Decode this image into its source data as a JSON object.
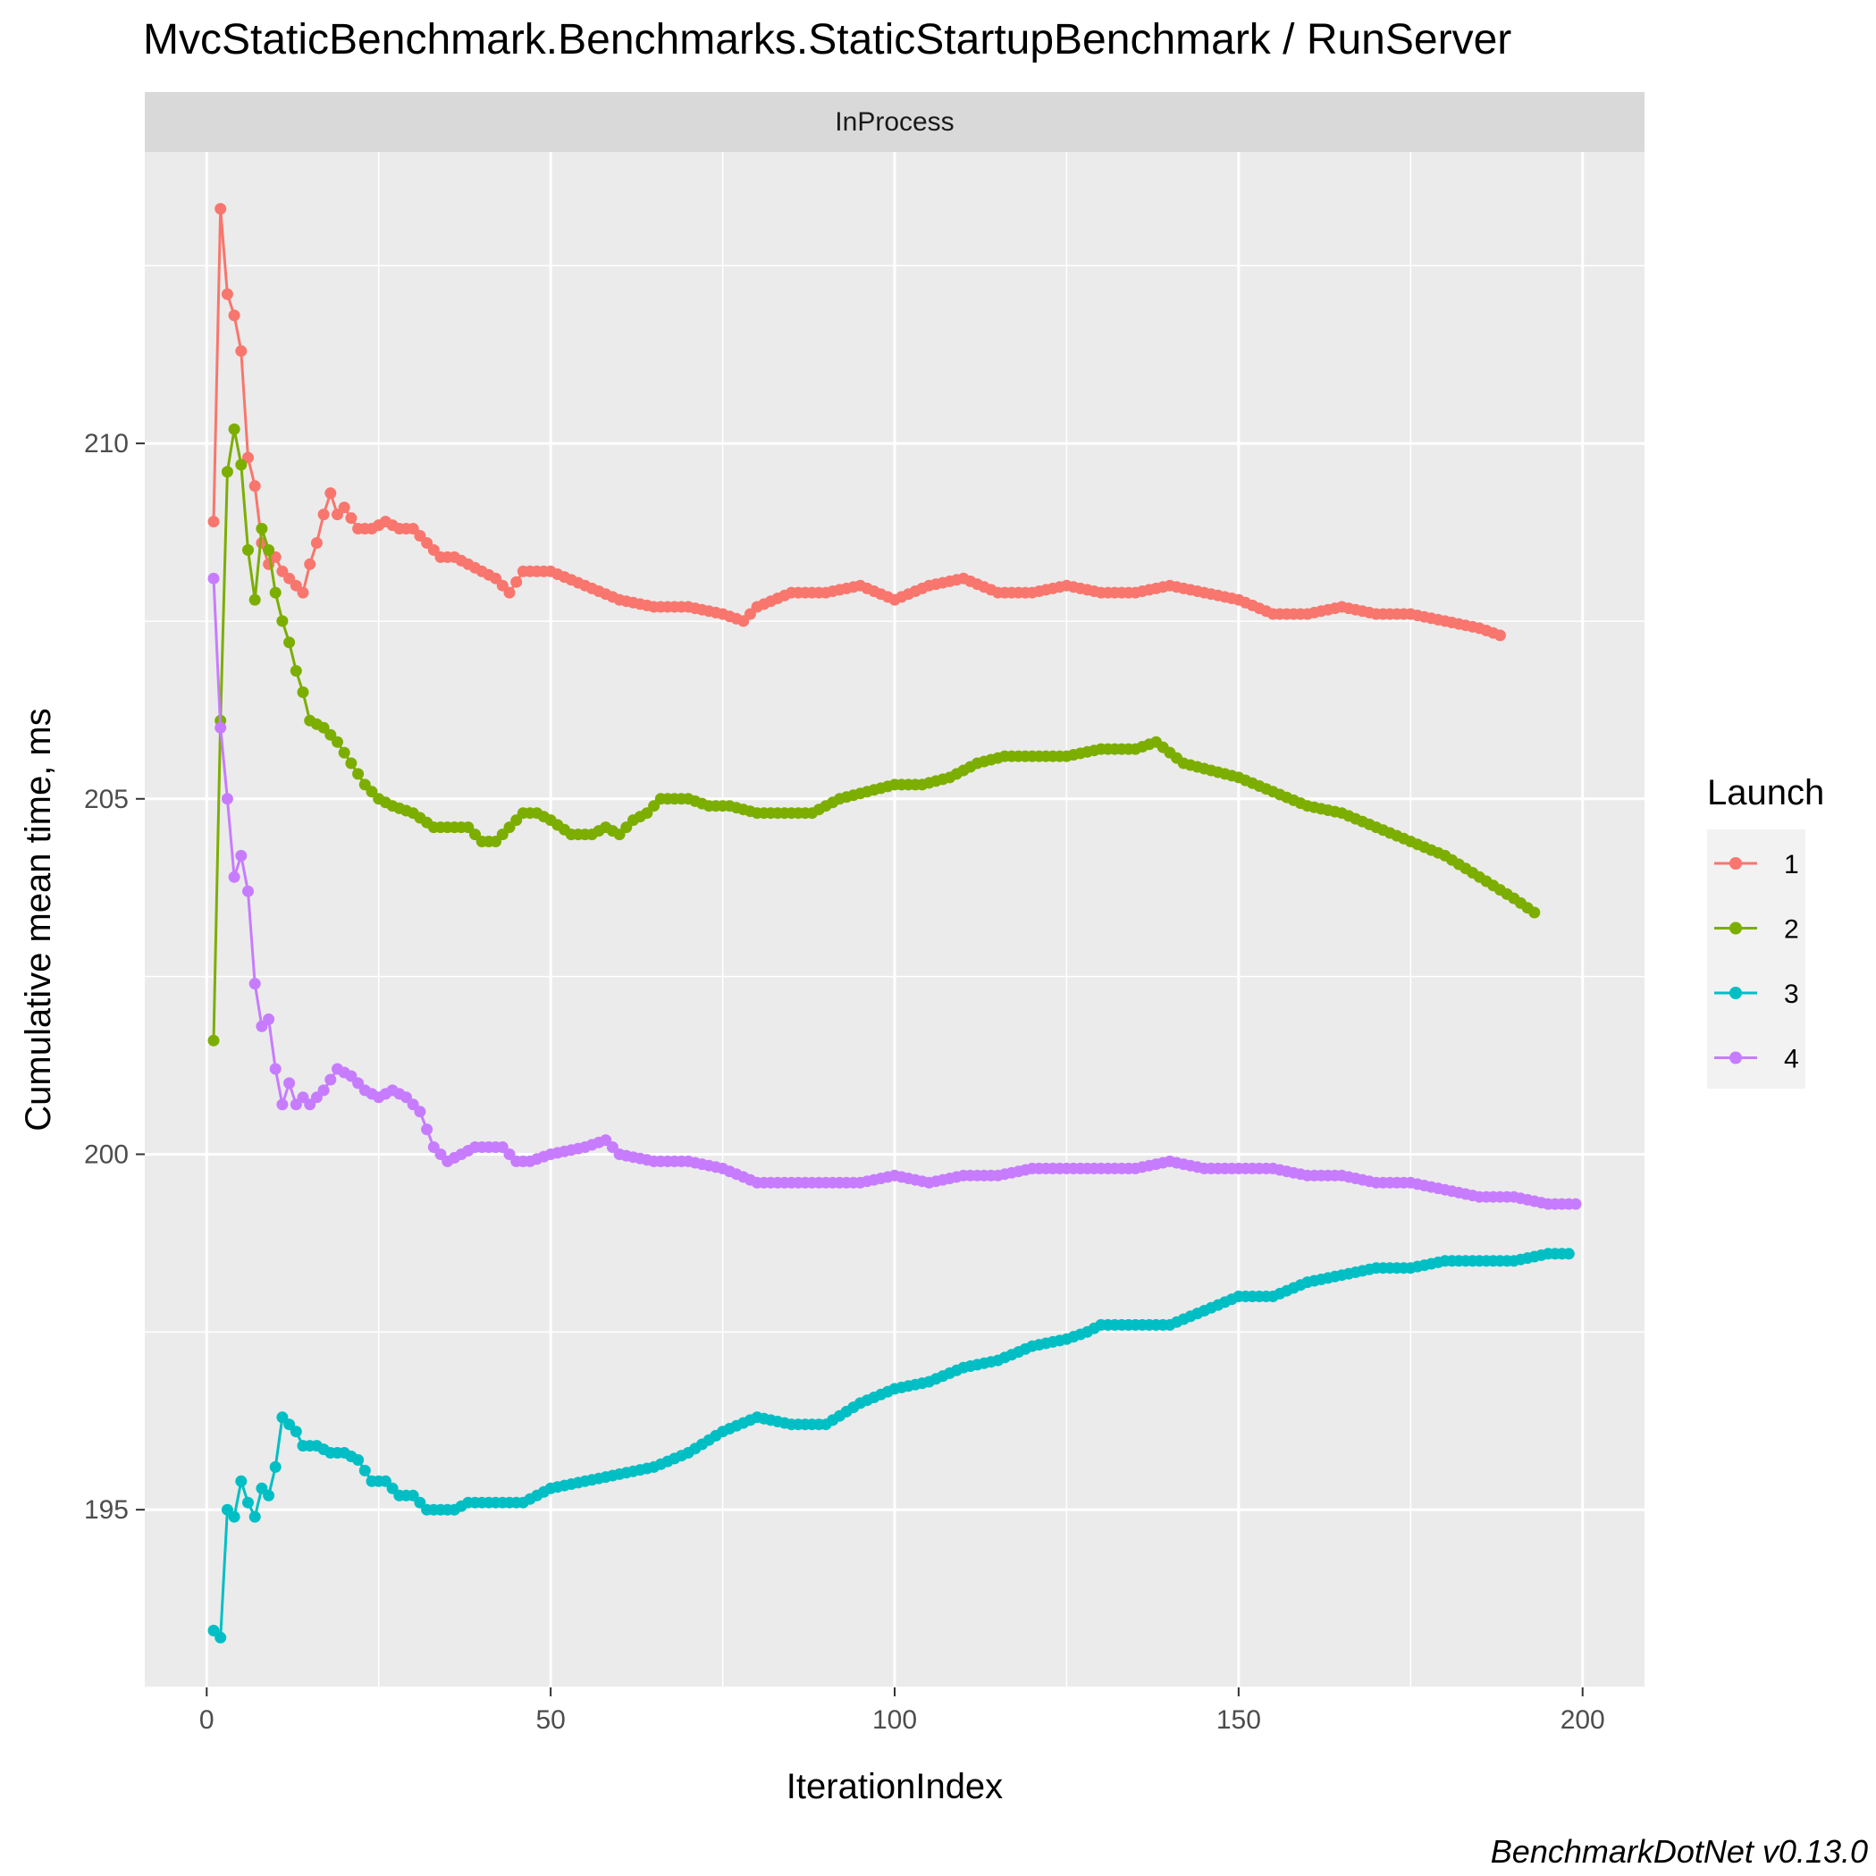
{
  "chart_data": {
    "type": "line",
    "title": "MvcStaticBenchmark.Benchmarks.StaticStartupBenchmark / RunServer",
    "facet_label": "InProcess",
    "xlabel": "IterationIndex",
    "ylabel": "Cumulative mean time, ms",
    "caption": "BenchmarkDotNet v0.13.0",
    "xlim": [
      -9,
      209
    ],
    "ylim": [
      192.5,
      214.1
    ],
    "x_ticks": [
      0,
      50,
      100,
      150,
      200
    ],
    "y_ticks": [
      195,
      200,
      205,
      210
    ],
    "grid": true,
    "markers": true,
    "legend": {
      "title": "Launch",
      "position": "right"
    },
    "series": [
      {
        "name": "1",
        "color": "#F8766D",
        "points": [
          [
            1,
            208.9
          ],
          [
            2,
            213.3
          ],
          [
            3,
            212.1
          ],
          [
            4,
            211.8
          ],
          [
            5,
            211.3
          ],
          [
            6,
            209.8
          ],
          [
            7,
            209.4
          ],
          [
            8,
            208.6
          ],
          [
            9,
            208.3
          ],
          [
            10,
            208.4
          ],
          [
            11,
            208.2
          ],
          [
            12,
            208.1
          ],
          [
            13,
            208.0
          ],
          [
            14,
            207.9
          ],
          [
            15,
            208.3
          ],
          [
            16,
            208.6
          ],
          [
            17,
            209.0
          ],
          [
            18,
            209.3
          ],
          [
            19,
            209.0
          ],
          [
            20,
            209.1
          ],
          [
            22,
            208.8
          ],
          [
            24,
            208.8
          ],
          [
            26,
            208.9
          ],
          [
            28,
            208.8
          ],
          [
            30,
            208.8
          ],
          [
            32,
            208.6
          ],
          [
            34,
            208.4
          ],
          [
            36,
            208.4
          ],
          [
            38,
            208.3
          ],
          [
            40,
            208.2
          ],
          [
            42,
            208.1
          ],
          [
            44,
            207.9
          ],
          [
            46,
            208.2
          ],
          [
            48,
            208.2
          ],
          [
            50,
            208.2
          ],
          [
            55,
            208.0
          ],
          [
            60,
            207.8
          ],
          [
            65,
            207.7
          ],
          [
            70,
            207.7
          ],
          [
            75,
            207.6
          ],
          [
            78,
            207.5
          ],
          [
            80,
            207.7
          ],
          [
            85,
            207.9
          ],
          [
            90,
            207.9
          ],
          [
            95,
            208.0
          ],
          [
            100,
            207.8
          ],
          [
            105,
            208.0
          ],
          [
            110,
            208.1
          ],
          [
            115,
            207.9
          ],
          [
            120,
            207.9
          ],
          [
            125,
            208.0
          ],
          [
            130,
            207.9
          ],
          [
            135,
            207.9
          ],
          [
            140,
            208.0
          ],
          [
            145,
            207.9
          ],
          [
            150,
            207.8
          ],
          [
            155,
            207.6
          ],
          [
            160,
            207.6
          ],
          [
            165,
            207.7
          ],
          [
            170,
            207.6
          ],
          [
            175,
            207.6
          ],
          [
            180,
            207.5
          ],
          [
            185,
            207.4
          ],
          [
            188,
            207.3
          ]
        ]
      },
      {
        "name": "2",
        "color": "#7CAE00",
        "points": [
          [
            1,
            201.6
          ],
          [
            2,
            206.1
          ],
          [
            3,
            209.6
          ],
          [
            4,
            210.2
          ],
          [
            5,
            209.7
          ],
          [
            6,
            208.5
          ],
          [
            7,
            207.8
          ],
          [
            8,
            208.8
          ],
          [
            9,
            208.5
          ],
          [
            10,
            207.9
          ],
          [
            11,
            207.5
          ],
          [
            12,
            207.2
          ],
          [
            13,
            206.8
          ],
          [
            14,
            206.5
          ],
          [
            15,
            206.1
          ],
          [
            17,
            206.0
          ],
          [
            19,
            205.8
          ],
          [
            21,
            205.5
          ],
          [
            23,
            205.2
          ],
          [
            25,
            205.0
          ],
          [
            27,
            204.9
          ],
          [
            30,
            204.8
          ],
          [
            33,
            204.6
          ],
          [
            36,
            204.6
          ],
          [
            38,
            204.6
          ],
          [
            40,
            204.4
          ],
          [
            42,
            204.4
          ],
          [
            44,
            204.6
          ],
          [
            46,
            204.8
          ],
          [
            48,
            204.8
          ],
          [
            50,
            204.7
          ],
          [
            53,
            204.5
          ],
          [
            56,
            204.5
          ],
          [
            58,
            204.6
          ],
          [
            60,
            204.5
          ],
          [
            62,
            204.7
          ],
          [
            64,
            204.8
          ],
          [
            66,
            205.0
          ],
          [
            68,
            205.0
          ],
          [
            70,
            205.0
          ],
          [
            73,
            204.9
          ],
          [
            76,
            204.9
          ],
          [
            80,
            204.8
          ],
          [
            85,
            204.8
          ],
          [
            88,
            204.8
          ],
          [
            92,
            205.0
          ],
          [
            96,
            205.1
          ],
          [
            100,
            205.2
          ],
          [
            104,
            205.2
          ],
          [
            108,
            205.3
          ],
          [
            112,
            205.5
          ],
          [
            116,
            205.6
          ],
          [
            120,
            205.6
          ],
          [
            125,
            205.6
          ],
          [
            130,
            205.7
          ],
          [
            135,
            205.7
          ],
          [
            138,
            205.8
          ],
          [
            142,
            205.5
          ],
          [
            146,
            205.4
          ],
          [
            150,
            205.3
          ],
          [
            155,
            205.1
          ],
          [
            160,
            204.9
          ],
          [
            165,
            204.8
          ],
          [
            170,
            204.6
          ],
          [
            175,
            204.4
          ],
          [
            180,
            204.2
          ],
          [
            185,
            203.9
          ],
          [
            190,
            203.6
          ],
          [
            193,
            203.4
          ]
        ]
      },
      {
        "name": "3",
        "color": "#00BFC4",
        "points": [
          [
            1,
            193.3
          ],
          [
            2,
            193.2
          ],
          [
            3,
            195.0
          ],
          [
            4,
            194.9
          ],
          [
            5,
            195.4
          ],
          [
            6,
            195.1
          ],
          [
            7,
            194.9
          ],
          [
            8,
            195.3
          ],
          [
            9,
            195.2
          ],
          [
            10,
            195.6
          ],
          [
            11,
            196.3
          ],
          [
            12,
            196.2
          ],
          [
            13,
            196.1
          ],
          [
            14,
            195.9
          ],
          [
            16,
            195.9
          ],
          [
            18,
            195.8
          ],
          [
            20,
            195.8
          ],
          [
            22,
            195.7
          ],
          [
            24,
            195.4
          ],
          [
            26,
            195.4
          ],
          [
            28,
            195.2
          ],
          [
            30,
            195.2
          ],
          [
            32,
            195.0
          ],
          [
            34,
            195.0
          ],
          [
            36,
            195.0
          ],
          [
            38,
            195.1
          ],
          [
            40,
            195.1
          ],
          [
            42,
            195.1
          ],
          [
            44,
            195.1
          ],
          [
            46,
            195.1
          ],
          [
            48,
            195.2
          ],
          [
            50,
            195.3
          ],
          [
            55,
            195.4
          ],
          [
            60,
            195.5
          ],
          [
            65,
            195.6
          ],
          [
            70,
            195.8
          ],
          [
            75,
            196.1
          ],
          [
            80,
            196.3
          ],
          [
            85,
            196.2
          ],
          [
            90,
            196.2
          ],
          [
            95,
            196.5
          ],
          [
            100,
            196.7
          ],
          [
            105,
            196.8
          ],
          [
            110,
            197.0
          ],
          [
            115,
            197.1
          ],
          [
            120,
            197.3
          ],
          [
            125,
            197.4
          ],
          [
            128,
            197.5
          ],
          [
            130,
            197.6
          ],
          [
            135,
            197.6
          ],
          [
            140,
            197.6
          ],
          [
            145,
            197.8
          ],
          [
            150,
            198.0
          ],
          [
            155,
            198.0
          ],
          [
            160,
            198.2
          ],
          [
            165,
            198.3
          ],
          [
            170,
            198.4
          ],
          [
            175,
            198.4
          ],
          [
            180,
            198.5
          ],
          [
            185,
            198.5
          ],
          [
            190,
            198.5
          ],
          [
            195,
            198.6
          ],
          [
            198,
            198.6
          ]
        ]
      },
      {
        "name": "4",
        "color": "#C77CFF",
        "points": [
          [
            1,
            208.1
          ],
          [
            2,
            206.0
          ],
          [
            3,
            205.0
          ],
          [
            4,
            203.9
          ],
          [
            5,
            204.2
          ],
          [
            6,
            203.7
          ],
          [
            7,
            202.4
          ],
          [
            8,
            201.8
          ],
          [
            9,
            201.9
          ],
          [
            10,
            201.2
          ],
          [
            11,
            200.7
          ],
          [
            12,
            201.0
          ],
          [
            13,
            200.7
          ],
          [
            14,
            200.8
          ],
          [
            15,
            200.7
          ],
          [
            17,
            200.9
          ],
          [
            19,
            201.2
          ],
          [
            21,
            201.1
          ],
          [
            23,
            200.9
          ],
          [
            25,
            200.8
          ],
          [
            27,
            200.9
          ],
          [
            29,
            200.8
          ],
          [
            31,
            200.6
          ],
          [
            33,
            200.1
          ],
          [
            35,
            199.9
          ],
          [
            37,
            200.0
          ],
          [
            39,
            200.1
          ],
          [
            41,
            200.1
          ],
          [
            43,
            200.1
          ],
          [
            45,
            199.9
          ],
          [
            47,
            199.9
          ],
          [
            50,
            200.0
          ],
          [
            55,
            200.1
          ],
          [
            58,
            200.2
          ],
          [
            60,
            200.0
          ],
          [
            65,
            199.9
          ],
          [
            70,
            199.9
          ],
          [
            75,
            199.8
          ],
          [
            80,
            199.6
          ],
          [
            85,
            199.6
          ],
          [
            90,
            199.6
          ],
          [
            95,
            199.6
          ],
          [
            100,
            199.7
          ],
          [
            105,
            199.6
          ],
          [
            110,
            199.7
          ],
          [
            115,
            199.7
          ],
          [
            120,
            199.8
          ],
          [
            125,
            199.8
          ],
          [
            130,
            199.8
          ],
          [
            135,
            199.8
          ],
          [
            140,
            199.9
          ],
          [
            145,
            199.8
          ],
          [
            150,
            199.8
          ],
          [
            155,
            199.8
          ],
          [
            160,
            199.7
          ],
          [
            165,
            199.7
          ],
          [
            170,
            199.6
          ],
          [
            175,
            199.6
          ],
          [
            180,
            199.5
          ],
          [
            185,
            199.4
          ],
          [
            190,
            199.4
          ],
          [
            195,
            199.3
          ],
          [
            199,
            199.3
          ]
        ]
      }
    ]
  }
}
